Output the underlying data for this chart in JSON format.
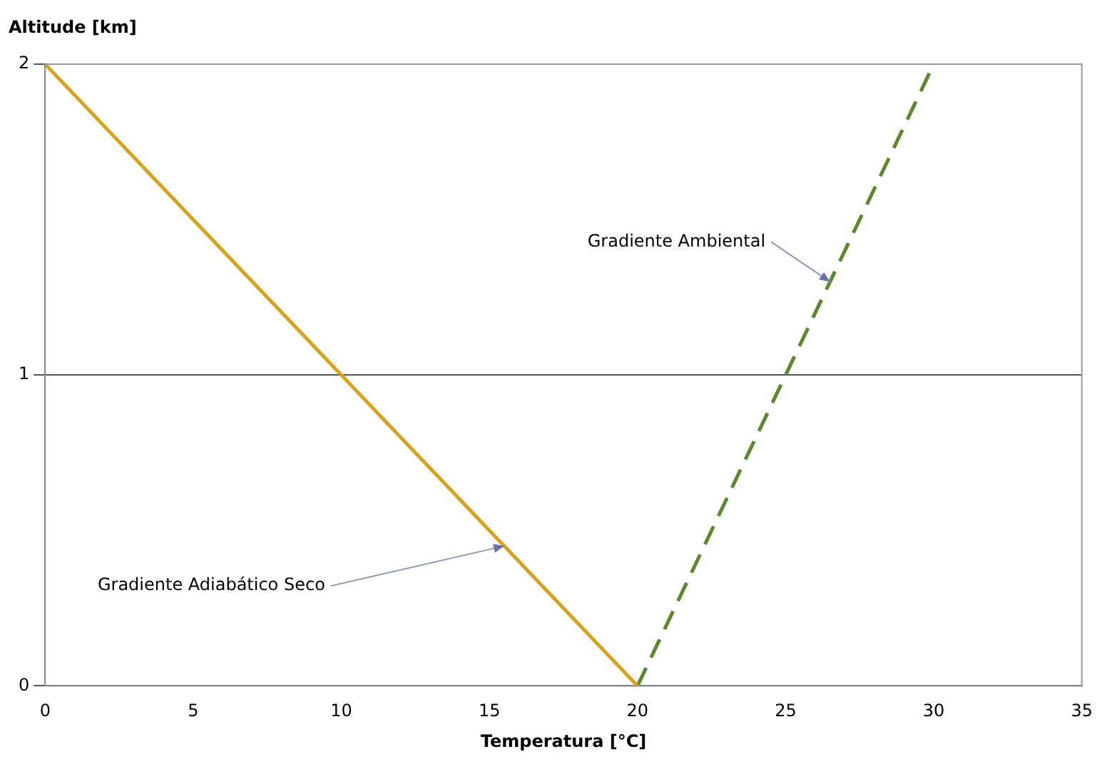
{
  "chart_data": {
    "type": "line",
    "xlabel": "Temperatura [°C]",
    "ylabel": "Altitude [km]",
    "series": [
      {
        "color": "#d9a21e",
        "x": [
          0,
          20
        ],
        "values": [
          2,
          0
        ],
        "line_style": "solid"
      },
      {
        "color": "#5b8a2e",
        "x": [
          20,
          30
        ],
        "values": [
          0,
          2
        ],
        "line_style": "dashed"
      }
    ],
    "xlim": [
      0,
      35
    ],
    "xticks": [
      0,
      5,
      10,
      15,
      20,
      25,
      30,
      35
    ],
    "ylim": [
      0,
      2
    ],
    "yticks": [
      0,
      1,
      2
    ],
    "grid": "y",
    "legend": false,
    "marker": "none",
    "annotations": [
      {
        "text": "Gradiente Ambiental",
        "x": 26.5,
        "y": 1.3
      },
      {
        "text": "Gradiente Adiabático Seco",
        "x": 15.5,
        "y": 0.45
      }
    ]
  }
}
